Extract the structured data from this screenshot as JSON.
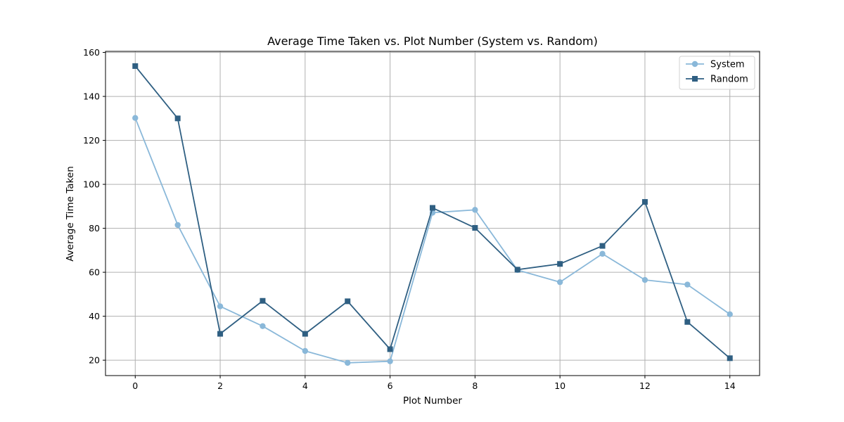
{
  "chart_data": {
    "type": "line",
    "title": "Average Time Taken vs. Plot Number (System vs. Random)",
    "xlabel": "Plot Number",
    "ylabel": "Average Time Taken",
    "x": [
      0,
      1,
      2,
      3,
      4,
      5,
      6,
      7,
      8,
      9,
      10,
      11,
      12,
      13,
      14
    ],
    "xlim": [
      -0.7,
      14.7
    ],
    "ylim": [
      13,
      160.5
    ],
    "xticks": [
      0,
      2,
      4,
      6,
      8,
      10,
      12,
      14
    ],
    "yticks": [
      20,
      40,
      60,
      80,
      100,
      120,
      140,
      160
    ],
    "grid": true,
    "legend_position": "top-right",
    "series": [
      {
        "name": "System",
        "color": "#8ab8d9",
        "marker": "circle",
        "values": [
          130.2,
          81.5,
          44.5,
          35.5,
          24.2,
          18.8,
          19.5,
          87.1,
          88.4,
          61.0,
          55.5,
          68.4,
          56.5,
          54.4,
          40.9
        ]
      },
      {
        "name": "Random",
        "color": "#2f5f82",
        "marker": "square",
        "values": [
          153.8,
          130.0,
          32.0,
          47.0,
          32.0,
          46.8,
          25.0,
          89.3,
          80.2,
          61.2,
          63.8,
          72.0,
          92.0,
          37.4,
          20.9
        ]
      }
    ]
  }
}
